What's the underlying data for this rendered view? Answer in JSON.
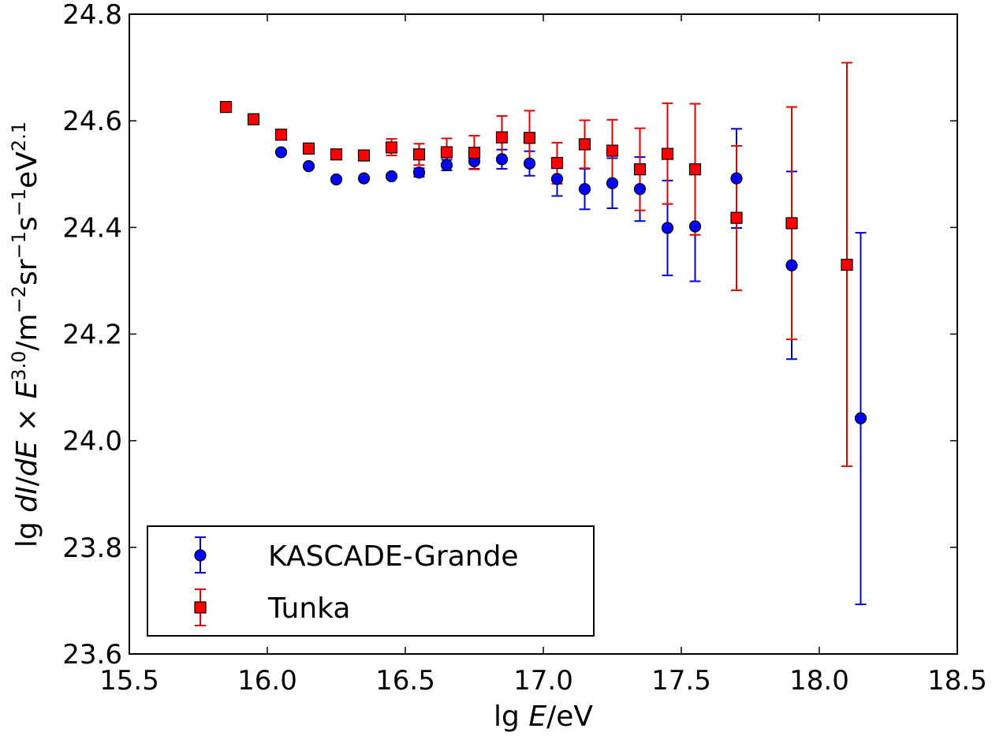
{
  "chart_data": {
    "type": "scatter",
    "xlim": [
      15.5,
      18.5
    ],
    "ylim": [
      23.6,
      24.8
    ],
    "xticks": [
      "15.5",
      "16.0",
      "16.5",
      "17.0",
      "17.5",
      "18.0",
      "18.5"
    ],
    "yticks": [
      "23.6",
      "23.8",
      "24.0",
      "24.2",
      "24.4",
      "24.6",
      "24.8"
    ],
    "xlabel": {
      "pre": "lg ",
      "var": "E",
      "post": "/eV"
    },
    "ylabel": {
      "lg": "lg ",
      "dI": "dI",
      "slash1": "/",
      "dE": "dE",
      "times": " × ",
      "E": "E",
      "exp1": "3.0",
      "unit1": "/m",
      "exp2": "−2",
      "unit2": "sr",
      "exp3": "−1",
      "unit3": "s",
      "exp4": "−1",
      "unit4": "eV",
      "exp5": "2.1"
    },
    "grid": false,
    "legend_position": "lower-left",
    "series": [
      {
        "name": "KASCADE-Grande",
        "marker": "circle",
        "color": "#0000ff",
        "errcolor": "#0000cc",
        "points": [
          {
            "x": 16.05,
            "y": 24.541,
            "lo": 24.541,
            "hi": 24.541
          },
          {
            "x": 16.15,
            "y": 24.515,
            "lo": 24.515,
            "hi": 24.515
          },
          {
            "x": 16.25,
            "y": 24.49,
            "lo": 24.49,
            "hi": 24.49
          },
          {
            "x": 16.35,
            "y": 24.492,
            "lo": 24.492,
            "hi": 24.492
          },
          {
            "x": 16.45,
            "y": 24.496,
            "lo": 24.496,
            "hi": 24.496
          },
          {
            "x": 16.55,
            "y": 24.503,
            "lo": 24.495,
            "hi": 24.511
          },
          {
            "x": 16.65,
            "y": 24.517,
            "lo": 24.507,
            "hi": 24.527
          },
          {
            "x": 16.75,
            "y": 24.524,
            "lo": 24.51,
            "hi": 24.537
          },
          {
            "x": 16.85,
            "y": 24.528,
            "lo": 24.51,
            "hi": 24.546
          },
          {
            "x": 16.95,
            "y": 24.52,
            "lo": 24.497,
            "hi": 24.543
          },
          {
            "x": 17.05,
            "y": 24.491,
            "lo": 24.459,
            "hi": 24.523
          },
          {
            "x": 17.15,
            "y": 24.472,
            "lo": 24.434,
            "hi": 24.51
          },
          {
            "x": 17.25,
            "y": 24.483,
            "lo": 24.436,
            "hi": 24.53
          },
          {
            "x": 17.35,
            "y": 24.472,
            "lo": 24.412,
            "hi": 24.532
          },
          {
            "x": 17.45,
            "y": 24.399,
            "lo": 24.31,
            "hi": 24.488
          },
          {
            "x": 17.55,
            "y": 24.402,
            "lo": 24.299,
            "hi": 24.506
          },
          {
            "x": 17.7,
            "y": 24.492,
            "lo": 24.399,
            "hi": 24.585
          },
          {
            "x": 17.9,
            "y": 24.329,
            "lo": 24.153,
            "hi": 24.505
          },
          {
            "x": 18.15,
            "y": 24.042,
            "lo": 23.693,
            "hi": 24.39
          }
        ]
      },
      {
        "name": "Tunka",
        "marker": "square",
        "color": "#ff0000",
        "errcolor": "#dd0000",
        "points": [
          {
            "x": 15.85,
            "y": 24.626,
            "lo": 24.626,
            "hi": 24.626
          },
          {
            "x": 15.95,
            "y": 24.603,
            "lo": 24.603,
            "hi": 24.603
          },
          {
            "x": 16.05,
            "y": 24.574,
            "lo": 24.574,
            "hi": 24.574
          },
          {
            "x": 16.15,
            "y": 24.548,
            "lo": 24.548,
            "hi": 24.548
          },
          {
            "x": 16.25,
            "y": 24.537,
            "lo": 24.537,
            "hi": 24.537
          },
          {
            "x": 16.35,
            "y": 24.535,
            "lo": 24.527,
            "hi": 24.544
          },
          {
            "x": 16.45,
            "y": 24.55,
            "lo": 24.535,
            "hi": 24.566
          },
          {
            "x": 16.55,
            "y": 24.537,
            "lo": 24.517,
            "hi": 24.557
          },
          {
            "x": 16.65,
            "y": 24.541,
            "lo": 24.515,
            "hi": 24.567
          },
          {
            "x": 16.75,
            "y": 24.54,
            "lo": 24.509,
            "hi": 24.572
          },
          {
            "x": 16.85,
            "y": 24.569,
            "lo": 24.53,
            "hi": 24.609
          },
          {
            "x": 16.95,
            "y": 24.568,
            "lo": 24.518,
            "hi": 24.619
          },
          {
            "x": 17.05,
            "y": 24.521,
            "lo": 24.482,
            "hi": 24.559
          },
          {
            "x": 17.15,
            "y": 24.556,
            "lo": 24.511,
            "hi": 24.601
          },
          {
            "x": 17.25,
            "y": 24.544,
            "lo": 24.487,
            "hi": 24.602
          },
          {
            "x": 17.35,
            "y": 24.509,
            "lo": 24.432,
            "hi": 24.586
          },
          {
            "x": 17.45,
            "y": 24.538,
            "lo": 24.444,
            "hi": 24.633
          },
          {
            "x": 17.55,
            "y": 24.509,
            "lo": 24.386,
            "hi": 24.632
          },
          {
            "x": 17.7,
            "y": 24.418,
            "lo": 24.282,
            "hi": 24.553
          },
          {
            "x": 17.9,
            "y": 24.408,
            "lo": 24.19,
            "hi": 24.626
          },
          {
            "x": 18.1,
            "y": 24.33,
            "lo": 23.952,
            "hi": 24.709
          }
        ]
      }
    ]
  }
}
